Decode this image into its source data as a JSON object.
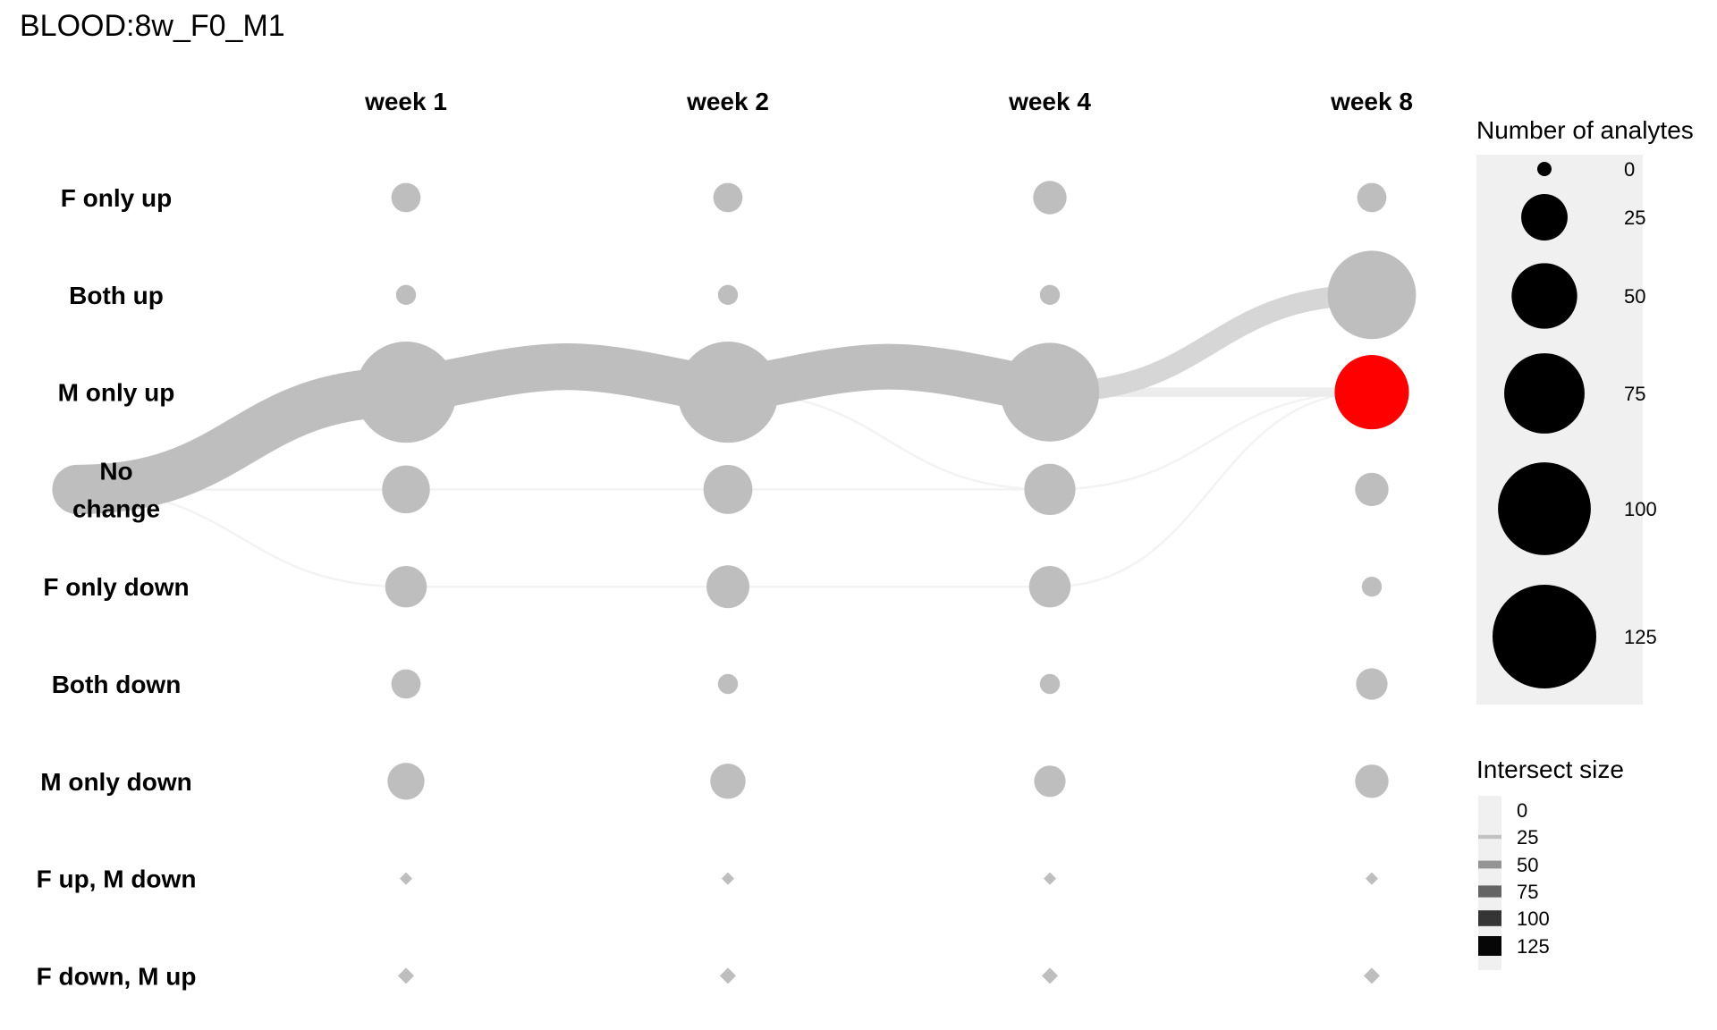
{
  "chart_data": {
    "type": "scatter",
    "title": "BLOOD:8w_F0_M1",
    "columns": [
      "week 1",
      "week 2",
      "week 4",
      "week 8"
    ],
    "rows": [
      {
        "label": "F only up",
        "lines": [
          "F only up"
        ],
        "shape": "circle"
      },
      {
        "label": "Both up",
        "lines": [
          "Both up"
        ],
        "shape": "circle"
      },
      {
        "label": "M only up",
        "lines": [
          "M only up"
        ],
        "shape": "circle"
      },
      {
        "label": "No change",
        "lines": [
          "No",
          "change"
        ],
        "shape": "circle"
      },
      {
        "label": "F only down",
        "lines": [
          "F only down"
        ],
        "shape": "circle"
      },
      {
        "label": "Both down",
        "lines": [
          "Both down"
        ],
        "shape": "circle"
      },
      {
        "label": "M only down",
        "lines": [
          "M only down"
        ],
        "shape": "circle"
      },
      {
        "label": "F up, M down",
        "lines": [
          "F up, M down"
        ],
        "shape": "diamond"
      },
      {
        "label": "F down, M up",
        "lines": [
          "F down, M up"
        ],
        "shape": "diamond"
      }
    ],
    "counts": {
      "F only up": [
        4,
        4,
        6,
        4
      ],
      "Both up": [
        1,
        1,
        1,
        70
      ],
      "M only up": [
        95,
        95,
        90,
        47
      ],
      "No change": [
        16,
        17,
        19,
        6
      ],
      "F only down": [
        11,
        12,
        11,
        1
      ],
      "Both down": [
        4,
        1,
        1,
        5
      ],
      "M only down": [
        8,
        7,
        5,
        6
      ],
      "F up, M down": [
        0,
        0,
        0,
        0
      ],
      "F down, M up": [
        2,
        2,
        2,
        2
      ]
    },
    "highlight": {
      "row": "M only up",
      "column": "week 8",
      "color": "#ff0000"
    },
    "point_color": "#bebebe",
    "flows": [
      {
        "from_row": "No change",
        "from_col": -1,
        "to_row": "M only up",
        "to_col": 0,
        "size": 95
      },
      {
        "from_row": "M only up",
        "from_col": 0,
        "to_row": "M only up",
        "to_col": 1,
        "size": 90
      },
      {
        "from_row": "M only up",
        "from_col": 1,
        "to_row": "M only up",
        "to_col": 2,
        "size": 88
      },
      {
        "from_row": "M only up",
        "from_col": 2,
        "to_row": "Both up",
        "to_col": 3,
        "size": 40
      },
      {
        "from_row": "M only up",
        "from_col": 2,
        "to_row": "M only up",
        "to_col": 3,
        "size": 18
      },
      {
        "from_row": "No change",
        "from_col": -1,
        "to_row": "No change",
        "to_col": 0,
        "size": 5
      },
      {
        "from_row": "No change",
        "from_col": -1,
        "to_row": "F only down",
        "to_col": 0,
        "size": 2
      },
      {
        "from_row": "No change",
        "from_col": 0,
        "to_row": "No change",
        "to_col": 1,
        "size": 3
      },
      {
        "from_row": "F only down",
        "from_col": 0,
        "to_row": "F only down",
        "to_col": 1,
        "size": 2
      },
      {
        "from_row": "No change",
        "from_col": 1,
        "to_row": "No change",
        "to_col": 2,
        "size": 3
      },
      {
        "from_row": "F only down",
        "from_col": 1,
        "to_row": "F only down",
        "to_col": 2,
        "size": 2
      },
      {
        "from_row": "M only up",
        "from_col": 1,
        "to_row": "No change",
        "to_col": 2,
        "size": 1
      },
      {
        "from_row": "F only down",
        "from_col": 2,
        "to_row": "M only up",
        "to_col": 3,
        "size": 1
      },
      {
        "from_row": "No change",
        "from_col": 2,
        "to_row": "M only up",
        "to_col": 3,
        "size": 1
      }
    ],
    "legend_size": {
      "title": "Number of analytes",
      "values": [
        0,
        25,
        50,
        75,
        100,
        125
      ],
      "labels": [
        "0",
        "25",
        "50",
        "75",
        "100",
        "125"
      ]
    },
    "legend_intersect": {
      "title": "Intersect size",
      "values": [
        0,
        25,
        50,
        75,
        100,
        125
      ],
      "labels": [
        "0",
        "25",
        "50",
        "75",
        "100",
        "125"
      ]
    },
    "legend_position": "right"
  }
}
